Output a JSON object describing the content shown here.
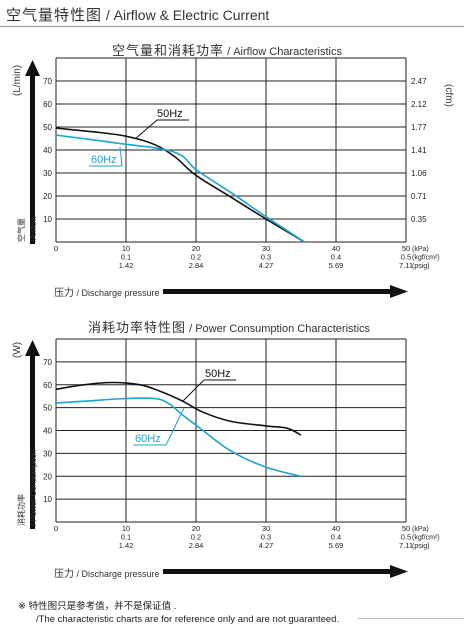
{
  "header": {
    "title_cn": "空气量特性图",
    "title_en": "/ Airflow & Electric Current"
  },
  "figures": {
    "airflow": {
      "title_cn": "空气量和消耗功率",
      "title_en": "/ Airflow Characteristics",
      "ylabel_left": "(L/min)",
      "ylabel_left_cn": "空气量",
      "ylabel_left_en": "/Airflow",
      "ylabel_right": "(cfm)",
      "pressure_label_cn": "压力",
      "pressure_label_en": "/ Discharge pressure"
    },
    "power": {
      "title_cn": "消耗功率特性图",
      "title_en": "/ Power Consumption Characteristics",
      "ylabel_left": "(W)",
      "ylabel_left_cn": "消耗功率",
      "ylabel_left_en": "/ Power Consumption",
      "pressure_label_cn": "压力",
      "pressure_label_en": "/ Discharge pressure"
    }
  },
  "note": {
    "line1": "※ 特性图只是参考值，并不是保证值 .",
    "line2": "/The characteristic charts are for reference only and are not guaranteed."
  },
  "colors": {
    "line_50hz": "#111111",
    "line_60hz": "#1ea3cf",
    "grid": "#222222",
    "arrow": "#111111"
  },
  "chart_data": [
    {
      "type": "line",
      "title": "空气量和消耗功率 / Airflow Characteristics",
      "xlabel": "压力 / Discharge pressure",
      "ylabel": "(L/min)",
      "y2label": "(cfm)",
      "xlim": [
        0,
        50
      ],
      "ylim": [
        0,
        80
      ],
      "grid": true,
      "x_ticks": [
        {
          "kpa": "0",
          "kgf": "",
          "psig": ""
        },
        {
          "kpa": "10",
          "kgf": "0.1",
          "psig": "1.42"
        },
        {
          "kpa": "20",
          "kgf": "0.2",
          "psig": "2.84"
        },
        {
          "kpa": "30",
          "kgf": "0.3",
          "psig": "4.27"
        },
        {
          "kpa": "40",
          "kgf": "0.4",
          "psig": "5.69"
        },
        {
          "kpa": "50",
          "kgf": "0.5",
          "psig": "7.11"
        }
      ],
      "x_units": {
        "kpa": "(kPa)",
        "kgf": "(kgf/cm²)",
        "psig": "(psig)"
      },
      "y_ticks": [
        "10",
        "20",
        "30",
        "40",
        "50",
        "60",
        "70"
      ],
      "y2_ticks": [
        "0.35",
        "0.71",
        "1.06",
        "1.41",
        "1.77",
        "2.12",
        "2.47"
      ],
      "series": [
        {
          "name": "50Hz",
          "x": [
            0,
            5,
            10,
            14,
            17,
            20,
            25,
            30,
            35.5
          ],
          "y": [
            49.5,
            48,
            46,
            42.5,
            37,
            29,
            19.5,
            10,
            0
          ]
        },
        {
          "name": "60Hz",
          "x": [
            0,
            5,
            10,
            15,
            18,
            20,
            25,
            30,
            35.5
          ],
          "y": [
            46.5,
            44.5,
            42.5,
            40.5,
            37.5,
            31.5,
            21.5,
            11,
            0
          ]
        }
      ]
    },
    {
      "type": "line",
      "title": "消耗功率特性图 / Power Consumption Characteristics",
      "xlabel": "压力 / Discharge pressure",
      "ylabel": "(W)",
      "xlim": [
        0,
        50
      ],
      "ylim": [
        0,
        80
      ],
      "grid": true,
      "x_ticks": [
        {
          "kpa": "0",
          "kgf": "",
          "psig": ""
        },
        {
          "kpa": "10",
          "kgf": "0.1",
          "psig": "1.42"
        },
        {
          "kpa": "20",
          "kgf": "0.2",
          "psig": "2.84"
        },
        {
          "kpa": "30",
          "kgf": "0.3",
          "psig": "4.27"
        },
        {
          "kpa": "40",
          "kgf": "0.4",
          "psig": "5.69"
        },
        {
          "kpa": "50",
          "kgf": "0.5",
          "psig": "7.11"
        }
      ],
      "x_units": {
        "kpa": "(kPa)",
        "kgf": "(kgf/cm²)",
        "psig": "(psig)"
      },
      "y_ticks": [
        "10",
        "20",
        "30",
        "40",
        "50",
        "60",
        "70"
      ],
      "series": [
        {
          "name": "50Hz",
          "x": [
            0,
            4,
            8,
            12,
            15,
            18,
            21,
            25,
            30,
            33,
            35
          ],
          "y": [
            58,
            60,
            61,
            60,
            57,
            53,
            48,
            44,
            42,
            41,
            38
          ]
        },
        {
          "name": "60Hz",
          "x": [
            0,
            5,
            10,
            14,
            16,
            18,
            21,
            25,
            30,
            35
          ],
          "y": [
            52,
            53,
            54,
            54,
            52,
            47,
            40,
            31,
            24,
            20
          ]
        }
      ]
    }
  ]
}
